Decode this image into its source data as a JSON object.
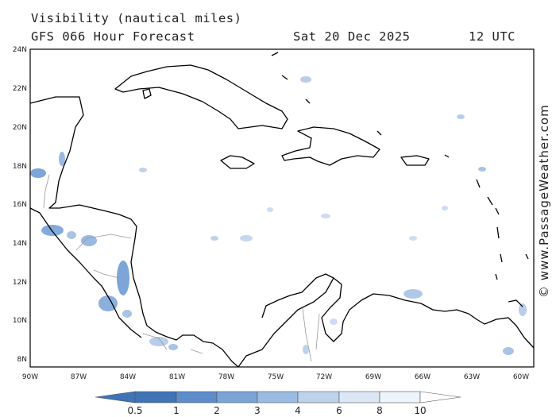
{
  "header": {
    "title": "Visibility (nautical miles)",
    "model": "GFS 066 Hour Forecast",
    "date": "Sat 20 Dec 2025",
    "time": "12 UTC"
  },
  "credit": "© www.PassageWeather.com",
  "axes": {
    "lat_labels": [
      "24N",
      "22N",
      "20N",
      "18N",
      "16N",
      "14N",
      "12N",
      "10N",
      "8N"
    ],
    "lon_labels": [
      "90W",
      "87W",
      "84W",
      "81W",
      "78W",
      "75W",
      "72W",
      "69W",
      "66W",
      "63W",
      "60W"
    ]
  },
  "colorbar": {
    "labels": [
      "0.5",
      "1",
      "2",
      "3",
      "4",
      "6",
      "8",
      "10"
    ],
    "colors": [
      "#3f74b8",
      "#5d8ccb",
      "#7aa3d6",
      "#9bbce2",
      "#bdd3ec",
      "#dbe7f5",
      "#eef4fb",
      "#ffffff"
    ]
  },
  "colors": {
    "land_outline": "#000000",
    "border": "#999999",
    "reduced_visibility": "#6f9bd3"
  }
}
